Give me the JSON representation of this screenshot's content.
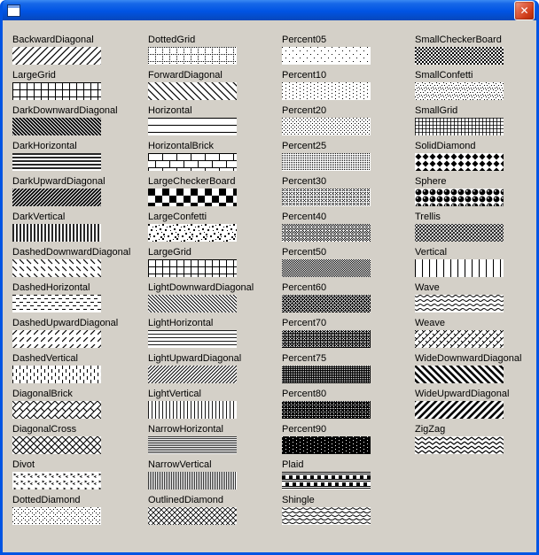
{
  "window": {
    "title": "",
    "close_glyph": "✕"
  },
  "colors": {
    "titlebar_blue": "#0054e3",
    "close_button_red": "#cf3b17",
    "client_background": "#d4d0c8",
    "pattern_foreground": "#000000",
    "pattern_background": "#ffffff"
  },
  "grid": {
    "columns": [
      {
        "items": [
          {
            "label": "BackwardDiagonal"
          },
          {
            "label": "LargeGrid"
          },
          {
            "label": "DarkDownwardDiagonal"
          },
          {
            "label": "DarkHorizontal"
          },
          {
            "label": "DarkUpwardDiagonal"
          },
          {
            "label": "DarkVertical"
          },
          {
            "label": "DashedDownwardDiagonal"
          },
          {
            "label": "DashedHorizontal"
          },
          {
            "label": "DashedUpwardDiagonal"
          },
          {
            "label": "DashedVertical"
          },
          {
            "label": "DiagonalBrick"
          },
          {
            "label": "DiagonalCross"
          },
          {
            "label": "Divot"
          },
          {
            "label": "DottedDiamond"
          }
        ]
      },
      {
        "items": [
          {
            "label": "DottedGrid"
          },
          {
            "label": "ForwardDiagonal"
          },
          {
            "label": "Horizontal"
          },
          {
            "label": "HorizontalBrick"
          },
          {
            "label": "LargeCheckerBoard"
          },
          {
            "label": "LargeConfetti"
          },
          {
            "label": "LargeGrid"
          },
          {
            "label": "LightDownwardDiagonal"
          },
          {
            "label": "LightHorizontal"
          },
          {
            "label": "LightUpwardDiagonal"
          },
          {
            "label": "LightVertical"
          },
          {
            "label": "NarrowHorizontal"
          },
          {
            "label": "NarrowVertical"
          },
          {
            "label": "OutlinedDiamond"
          }
        ]
      },
      {
        "items": [
          {
            "label": "Percent05"
          },
          {
            "label": "Percent10"
          },
          {
            "label": "Percent20"
          },
          {
            "label": "Percent25"
          },
          {
            "label": "Percent30"
          },
          {
            "label": "Percent40"
          },
          {
            "label": "Percent50"
          },
          {
            "label": "Percent60"
          },
          {
            "label": "Percent70"
          },
          {
            "label": "Percent75"
          },
          {
            "label": "Percent80"
          },
          {
            "label": "Percent90"
          },
          {
            "label": "Plaid"
          },
          {
            "label": "Shingle"
          }
        ]
      },
      {
        "items": [
          {
            "label": "SmallCheckerBoard"
          },
          {
            "label": "SmallConfetti"
          },
          {
            "label": "SmallGrid"
          },
          {
            "label": "SolidDiamond"
          },
          {
            "label": "Sphere"
          },
          {
            "label": "Trellis"
          },
          {
            "label": "Vertical"
          },
          {
            "label": "Wave"
          },
          {
            "label": "Weave"
          },
          {
            "label": "WideDownwardDiagonal"
          },
          {
            "label": "WideUpwardDiagonal"
          },
          {
            "label": "ZigZag"
          }
        ]
      }
    ]
  }
}
